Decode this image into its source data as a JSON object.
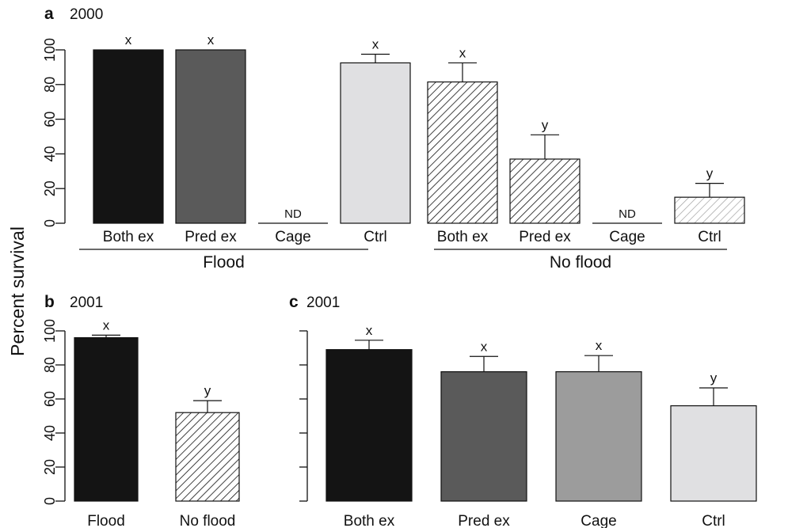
{
  "ylabel": "Percent survival",
  "fills": {
    "black": "#141414",
    "darkgray": "#5a5a5a",
    "midgray": "#9c9c9c",
    "lightgray": "#e0e0e2",
    "hatchdense": "#111111",
    "hatchlight": "#9a9a9a",
    "white": "#ffffff"
  },
  "chart_data": [
    {
      "panel": "a",
      "title": "2000",
      "type": "bar",
      "ylim": [
        0,
        100
      ],
      "yticks": [
        0,
        20,
        40,
        60,
        80,
        100
      ],
      "groups": [
        {
          "label": "Flood",
          "categories": [
            "Both ex",
            "Pred ex",
            "Cage",
            "Ctrl"
          ]
        },
        {
          "label": "No flood",
          "categories": [
            "Both ex",
            "Pred ex",
            "Cage",
            "Ctrl"
          ]
        }
      ],
      "bars": [
        {
          "category": "Both ex",
          "group": "Flood",
          "value": 100,
          "error": 0,
          "sig": "x",
          "fill": "black"
        },
        {
          "category": "Pred ex",
          "group": "Flood",
          "value": 100,
          "error": 0,
          "sig": "x",
          "fill": "darkgray"
        },
        {
          "category": "Cage",
          "group": "Flood",
          "value": 0,
          "error": 0,
          "sig": "ND",
          "fill": "midgray"
        },
        {
          "category": "Ctrl",
          "group": "Flood",
          "value": 92.5,
          "error": 5,
          "sig": "x",
          "fill": "lightgray"
        },
        {
          "category": "Both ex",
          "group": "No flood",
          "value": 81.5,
          "error": 11,
          "sig": "x",
          "fill": "hatchdense"
        },
        {
          "category": "Pred ex",
          "group": "No flood",
          "value": 37,
          "error": 14,
          "sig": "y",
          "fill": "hatchdense"
        },
        {
          "category": "Cage",
          "group": "No flood",
          "value": 0,
          "error": 0,
          "sig": "ND",
          "fill": "hatchdense"
        },
        {
          "category": "Ctrl",
          "group": "No flood",
          "value": 15,
          "error": 8,
          "sig": "y",
          "fill": "hatchlight"
        }
      ]
    },
    {
      "panel": "b",
      "title": "2001",
      "type": "bar",
      "ylim": [
        0,
        100
      ],
      "yticks": [
        0,
        20,
        40,
        60,
        80,
        100
      ],
      "categories": [
        "Flood",
        "No flood"
      ],
      "bars": [
        {
          "category": "Flood",
          "value": 96,
          "error": 1.5,
          "sig": "x",
          "fill": "black"
        },
        {
          "category": "No flood",
          "value": 52,
          "error": 7,
          "sig": "y",
          "fill": "hatchdense"
        }
      ]
    },
    {
      "panel": "c",
      "title": "2001",
      "type": "bar",
      "ylim": [
        0,
        100
      ],
      "yticks": [
        0,
        20,
        40,
        60,
        80,
        100
      ],
      "categories": [
        "Both ex",
        "Pred ex",
        "Cage",
        "Ctrl"
      ],
      "bars": [
        {
          "category": "Both ex",
          "value": 89,
          "error": 5.5,
          "sig": "x",
          "fill": "black"
        },
        {
          "category": "Pred ex",
          "value": 76,
          "error": 9,
          "sig": "x",
          "fill": "darkgray"
        },
        {
          "category": "Cage",
          "value": 76,
          "error": 9.5,
          "sig": "x",
          "fill": "midgray"
        },
        {
          "category": "Ctrl",
          "value": 56,
          "error": 10.5,
          "sig": "y",
          "fill": "lightgray"
        }
      ]
    }
  ]
}
